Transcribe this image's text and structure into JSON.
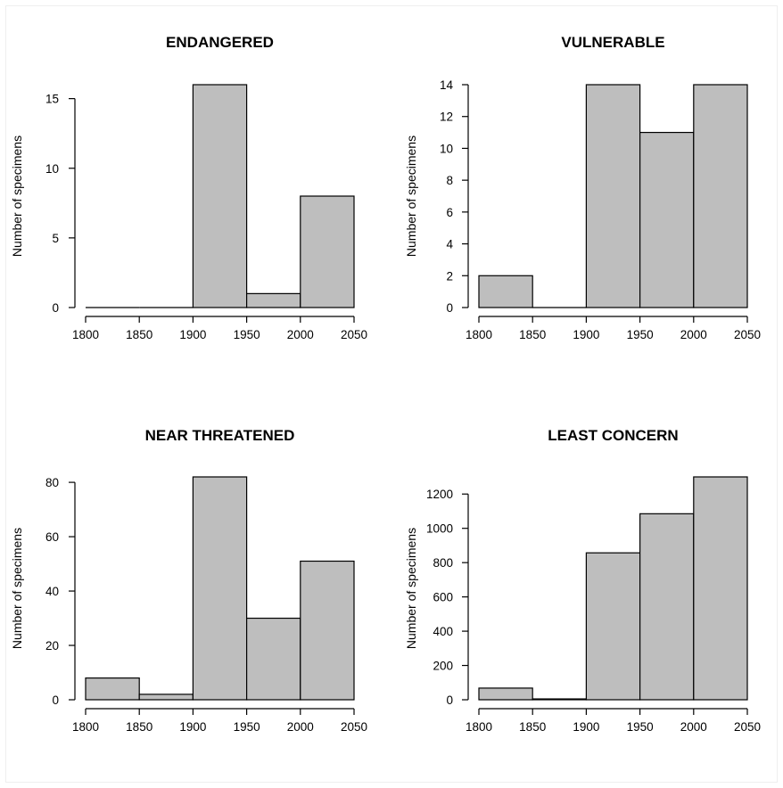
{
  "colors": {
    "bar_fill": "#bebebe",
    "bar_stroke": "#000000",
    "background": "#ffffff"
  },
  "chart_data": [
    {
      "type": "bar",
      "title": "ENDANGERED",
      "xlabel": "",
      "ylabel": "Number of specimens",
      "bins": [
        [
          1800,
          1850
        ],
        [
          1850,
          1900
        ],
        [
          1900,
          1950
        ],
        [
          1950,
          2000
        ],
        [
          2000,
          2050
        ]
      ],
      "values": [
        0,
        0,
        16,
        1,
        8
      ],
      "xticks": [
        1800,
        1850,
        1900,
        1950,
        2000,
        2050
      ],
      "yticks": [
        0,
        5,
        10,
        15
      ],
      "xlim": [
        1800,
        2050
      ],
      "ylim": [
        0,
        16
      ],
      "grid": false
    },
    {
      "type": "bar",
      "title": "VULNERABLE",
      "xlabel": "",
      "ylabel": "Number of specimens",
      "bins": [
        [
          1800,
          1850
        ],
        [
          1850,
          1900
        ],
        [
          1900,
          1950
        ],
        [
          1950,
          2000
        ],
        [
          2000,
          2050
        ]
      ],
      "values": [
        2,
        0,
        14,
        11,
        14
      ],
      "xticks": [
        1800,
        1850,
        1900,
        1950,
        2000,
        2050
      ],
      "yticks": [
        0,
        2,
        4,
        6,
        8,
        10,
        12,
        14
      ],
      "xlim": [
        1800,
        2050
      ],
      "ylim": [
        0,
        14
      ],
      "grid": false
    },
    {
      "type": "bar",
      "title": "NEAR THREATENED",
      "xlabel": "",
      "ylabel": "Number of specimens",
      "bins": [
        [
          1800,
          1850
        ],
        [
          1850,
          1900
        ],
        [
          1900,
          1950
        ],
        [
          1950,
          2000
        ],
        [
          2000,
          2050
        ]
      ],
      "values": [
        8,
        2,
        82,
        30,
        51
      ],
      "xticks": [
        1800,
        1850,
        1900,
        1950,
        2000,
        2050
      ],
      "yticks": [
        0,
        20,
        40,
        60,
        80
      ],
      "xlim": [
        1800,
        2050
      ],
      "ylim": [
        0,
        82
      ],
      "grid": false
    },
    {
      "type": "bar",
      "title": "LEAST CONCERN",
      "xlabel": "",
      "ylabel": "Number of specimens",
      "bins": [
        [
          1800,
          1850
        ],
        [
          1850,
          1900
        ],
        [
          1900,
          1950
        ],
        [
          1950,
          2000
        ],
        [
          2000,
          2050
        ]
      ],
      "values": [
        68,
        5,
        857,
        1085,
        1300
      ],
      "xticks": [
        1800,
        1850,
        1900,
        1950,
        2000,
        2050
      ],
      "yticks": [
        0,
        200,
        400,
        600,
        800,
        1000,
        1200
      ],
      "xlim": [
        1800,
        2050
      ],
      "ylim": [
        0,
        1300
      ],
      "grid": false
    }
  ]
}
